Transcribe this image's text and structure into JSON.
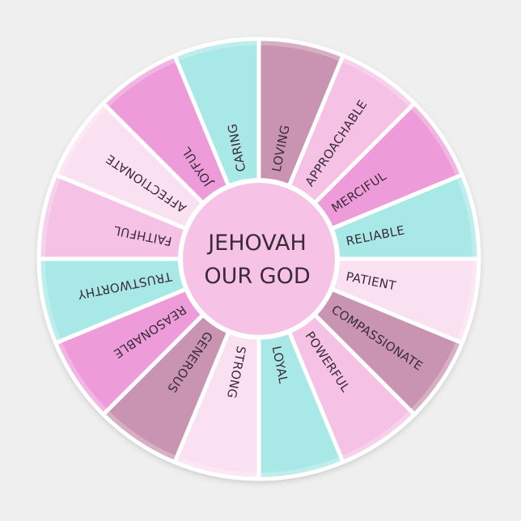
{
  "center": {
    "line1": "JEHOVAH",
    "line2": "OUR GOD",
    "color": "#f6c3e7"
  },
  "background": "#efefef",
  "segments": [
    {
      "label": "LOVING",
      "color": "#c994b2"
    },
    {
      "label": "APPROACHABLE",
      "color": "#f5c1e4"
    },
    {
      "label": "MERCIFUL",
      "color": "#ee9cd9"
    },
    {
      "label": "RELIABLE",
      "color": "#a8e8e6"
    },
    {
      "label": "PATIENT",
      "color": "#fae1f1"
    },
    {
      "label": "COMPASSIONATE",
      "color": "#c994b2"
    },
    {
      "label": "POWERFUL",
      "color": "#f5c1e4"
    },
    {
      "label": "LOYAL",
      "color": "#a8e8e6"
    },
    {
      "label": "STRONG",
      "color": "#fae1f1"
    },
    {
      "label": "GENEROUS",
      "color": "#c994b2"
    },
    {
      "label": "REASONABLE",
      "color": "#ee9cd9"
    },
    {
      "label": "TRUSTWORTHY",
      "color": "#a8e8e6"
    },
    {
      "label": "FAITHFUL",
      "color": "#f5c1e4"
    },
    {
      "label": "AFFECTIONATE",
      "color": "#fae1f1"
    },
    {
      "label": "JOYFUL",
      "color": "#ee9cd9"
    },
    {
      "label": "CARING",
      "color": "#a8e8e6"
    }
  ]
}
